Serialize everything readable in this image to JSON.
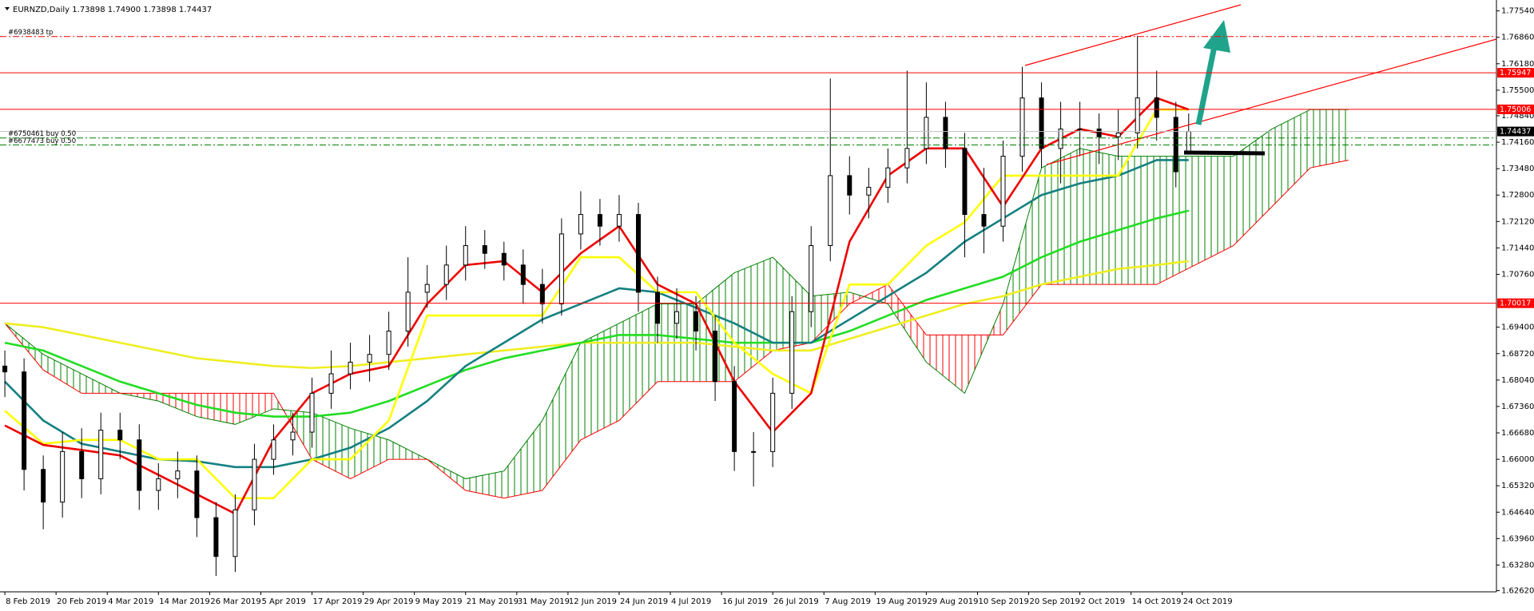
{
  "chart_data": {
    "type": "candlestick",
    "title": "EURNZD,Daily  1.73898 1.74900 1.73898 1.74437",
    "xlim": [
      -0.76,
      233.1
    ],
    "ylim": [
      1.6259,
      1.7782
    ],
    "xticks": [
      {
        "value": 0,
        "label": "8 Feb 2019"
      },
      {
        "value": 8,
        "label": "20 Feb 2019"
      },
      {
        "value": 16,
        "label": "4 Mar 2019"
      },
      {
        "value": 24,
        "label": "14 Mar 2019"
      },
      {
        "value": 32,
        "label": "26 Mar 2019"
      },
      {
        "value": 40,
        "label": "5 Apr 2019"
      },
      {
        "value": 48,
        "label": "17 Apr 2019"
      },
      {
        "value": 56,
        "label": "29 Apr 2019"
      },
      {
        "value": 64,
        "label": "9 May 2019"
      },
      {
        "value": 72,
        "label": "21 May 2019"
      },
      {
        "value": 80,
        "label": "31 May 2019"
      },
      {
        "value": 88,
        "label": "12 Jun 2019"
      },
      {
        "value": 96,
        "label": "24 Jun 2019"
      },
      {
        "value": 104,
        "label": "4 Jul 2019"
      },
      {
        "value": 112,
        "label": "16 Jul 2019"
      },
      {
        "value": 120,
        "label": "26 Jul 2019"
      },
      {
        "value": 128,
        "label": "7 Aug 2019"
      },
      {
        "value": 136,
        "label": "19 Aug 2019"
      },
      {
        "value": 144,
        "label": "29 Aug 2019"
      },
      {
        "value": 152,
        "label": "10 Sep 2019"
      },
      {
        "value": 160,
        "label": "20 Sep 2019"
      },
      {
        "value": 168,
        "label": "2 Oct 2019"
      },
      {
        "value": 176,
        "label": "14 Oct 2019"
      },
      {
        "value": 184,
        "label": "24 Oct 2019"
      }
    ],
    "yticks": [
      {
        "value": 1.7754,
        "label": "1.77540"
      },
      {
        "value": 1.7686,
        "label": "1.76860"
      },
      {
        "value": 1.7618,
        "label": "1.76180"
      },
      {
        "value": 1.755,
        "label": "1.75500"
      },
      {
        "value": 1.7484,
        "label": "1.74840"
      },
      {
        "value": 1.7416,
        "label": "1.74160"
      },
      {
        "value": 1.7348,
        "label": "1.73480"
      },
      {
        "value": 1.728,
        "label": "1.72800"
      },
      {
        "value": 1.7212,
        "label": "1.72120"
      },
      {
        "value": 1.7144,
        "label": "1.71440"
      },
      {
        "value": 1.7076,
        "label": "1.70760"
      },
      {
        "value": 1.694,
        "label": "1.69400"
      },
      {
        "value": 1.6872,
        "label": "1.68720"
      },
      {
        "value": 1.6804,
        "label": "1.68040"
      },
      {
        "value": 1.6736,
        "label": "1.67360"
      },
      {
        "value": 1.6668,
        "label": "1.66680"
      },
      {
        "value": 1.66,
        "label": "1.66000"
      },
      {
        "value": 1.6532,
        "label": "1.65320"
      },
      {
        "value": 1.6464,
        "label": "1.64640"
      },
      {
        "value": 1.6396,
        "label": "1.63960"
      },
      {
        "value": 1.6328,
        "label": "1.63280"
      },
      {
        "value": 1.6262,
        "label": "1.62620"
      }
    ],
    "up_color": "#ffffff",
    "down_color": "#000000",
    "x": [
      0,
      3,
      6,
      9,
      12,
      15,
      18,
      21,
      24,
      27,
      30,
      33,
      36,
      39,
      42,
      45,
      48,
      51,
      54,
      57,
      60,
      63,
      66,
      69,
      72,
      75,
      78,
      81,
      84,
      87,
      90,
      93,
      96,
      99,
      102,
      105,
      108,
      111,
      114,
      117,
      120,
      123,
      126,
      129,
      132,
      135,
      138,
      141,
      144,
      147,
      150,
      153,
      156,
      159,
      162,
      165,
      168,
      171,
      174,
      177,
      180,
      183,
      185
    ],
    "open": [
      1.684,
      1.6825,
      1.6574,
      1.649,
      1.662,
      1.655,
      1.6675,
      1.665,
      1.652,
      1.655,
      1.657,
      1.645,
      1.635,
      1.647,
      1.66,
      1.665,
      1.667,
      1.677,
      1.682,
      1.685,
      1.687,
      1.693,
      1.703,
      1.705,
      1.71,
      1.715,
      1.713,
      1.71,
      1.705,
      1.7,
      1.718,
      1.723,
      1.72,
      1.723,
      1.703,
      1.695,
      1.698,
      1.693,
      1.68,
      1.662,
      1.662,
      1.677,
      1.698,
      1.715,
      1.733,
      1.728,
      1.73,
      1.735,
      1.74,
      1.748,
      1.74,
      1.723,
      1.72,
      1.738,
      1.753,
      1.74,
      1.745,
      1.745,
      1.743,
      1.744,
      1.753,
      1.748,
      1.73898
    ],
    "high": [
      1.688,
      1.686,
      1.661,
      1.667,
      1.668,
      1.672,
      1.672,
      1.669,
      1.659,
      1.662,
      1.661,
      1.649,
      1.651,
      1.664,
      1.669,
      1.672,
      1.681,
      1.688,
      1.69,
      1.692,
      1.698,
      1.712,
      1.71,
      1.715,
      1.72,
      1.719,
      1.716,
      1.714,
      1.709,
      1.722,
      1.729,
      1.727,
      1.728,
      1.726,
      1.707,
      1.704,
      1.702,
      1.697,
      1.684,
      1.667,
      1.681,
      1.702,
      1.72,
      1.758,
      1.738,
      1.735,
      1.74,
      1.76,
      1.757,
      1.752,
      1.744,
      1.735,
      1.742,
      1.761,
      1.757,
      1.752,
      1.752,
      1.749,
      1.75,
      1.769,
      1.76,
      1.752,
      1.749
    ],
    "low": [
      1.676,
      1.652,
      1.642,
      1.645,
      1.65,
      1.651,
      1.66,
      1.647,
      1.647,
      1.65,
      1.64,
      1.63,
      1.631,
      1.643,
      1.656,
      1.661,
      1.663,
      1.673,
      1.678,
      1.68,
      1.683,
      1.689,
      1.699,
      1.701,
      1.706,
      1.709,
      1.706,
      1.7,
      1.695,
      1.697,
      1.714,
      1.715,
      1.716,
      1.698,
      1.69,
      1.691,
      1.688,
      1.675,
      1.657,
      1.653,
      1.658,
      1.673,
      1.694,
      1.711,
      1.723,
      1.722,
      1.726,
      1.731,
      1.736,
      1.735,
      1.712,
      1.713,
      1.716,
      1.734,
      1.735,
      1.731,
      1.738,
      1.736,
      1.737,
      1.74,
      1.742,
      1.73,
      1.73898
    ],
    "close": [
      1.6825,
      1.6574,
      1.649,
      1.662,
      1.655,
      1.6675,
      1.665,
      1.652,
      1.655,
      1.657,
      1.645,
      1.635,
      1.647,
      1.66,
      1.665,
      1.667,
      1.677,
      1.682,
      1.685,
      1.687,
      1.693,
      1.703,
      1.705,
      1.71,
      1.715,
      1.713,
      1.71,
      1.705,
      1.7,
      1.718,
      1.723,
      1.72,
      1.723,
      1.703,
      1.695,
      1.698,
      1.693,
      1.68,
      1.662,
      1.662,
      1.677,
      1.698,
      1.715,
      1.733,
      1.728,
      1.73,
      1.735,
      1.74,
      1.748,
      1.74,
      1.723,
      1.72,
      1.738,
      1.753,
      1.74,
      1.745,
      1.745,
      1.743,
      1.744,
      1.753,
      1.748,
      1.734,
      1.74437
    ],
    "cloud": {
      "x": [
        0,
        6,
        12,
        18,
        24,
        30,
        36,
        42,
        48,
        54,
        60,
        66,
        72,
        78,
        84,
        90,
        96,
        102,
        108,
        114,
        120,
        126,
        132,
        138,
        144,
        150,
        156,
        162,
        168,
        174,
        180,
        186,
        192,
        198,
        204,
        210
      ],
      "span_a": [
        1.695,
        1.687,
        1.682,
        1.677,
        1.675,
        1.671,
        1.669,
        1.673,
        1.672,
        1.668,
        1.665,
        1.66,
        1.655,
        1.657,
        1.67,
        1.69,
        1.695,
        1.7,
        1.7,
        1.708,
        1.712,
        1.702,
        1.703,
        1.7,
        1.685,
        1.677,
        1.7,
        1.735,
        1.74,
        1.738,
        1.738,
        1.738,
        1.738,
        1.745,
        1.75,
        1.75
      ],
      "span_b": [
        1.695,
        1.683,
        1.677,
        1.677,
        1.677,
        1.677,
        1.677,
        1.677,
        1.66,
        1.655,
        1.66,
        1.66,
        1.652,
        1.65,
        1.652,
        1.665,
        1.67,
        1.68,
        1.68,
        1.68,
        1.688,
        1.69,
        1.7,
        1.705,
        1.692,
        1.692,
        1.692,
        1.705,
        1.705,
        1.705,
        1.705,
        1.71,
        1.715,
        1.725,
        1.735,
        1.737
      ],
      "up_color": "#008000",
      "down_color": "#ff0000"
    },
    "line_x": [
      0,
      6,
      12,
      18,
      24,
      30,
      36,
      42,
      48,
      54,
      60,
      66,
      72,
      78,
      84,
      90,
      96,
      102,
      108,
      114,
      120,
      126,
      132,
      138,
      144,
      150,
      156,
      162,
      168,
      174,
      180,
      185
    ],
    "lines": [
      {
        "color": "#eeee22",
        "values": [
          1.695,
          1.694,
          1.692,
          1.69,
          1.688,
          1.686,
          1.685,
          1.684,
          1.6835,
          1.684,
          1.685,
          1.686,
          1.687,
          1.688,
          1.689,
          1.69,
          1.69,
          1.69,
          1.69,
          1.689,
          1.688,
          1.688,
          1.691,
          1.694,
          1.697,
          1.7,
          1.702,
          1.705,
          1.707,
          1.709,
          1.71,
          1.711
        ]
      },
      {
        "color": "#22dd22",
        "values": [
          1.69,
          1.688,
          1.684,
          1.68,
          1.677,
          1.674,
          1.672,
          1.671,
          1.671,
          1.672,
          1.675,
          1.679,
          1.683,
          1.686,
          1.688,
          1.69,
          1.692,
          1.692,
          1.691,
          1.69,
          1.69,
          1.69,
          1.693,
          1.697,
          1.701,
          1.704,
          1.707,
          1.712,
          1.716,
          1.719,
          1.722,
          1.724
        ]
      },
      {
        "color": "#148080",
        "values": [
          1.68,
          1.67,
          1.664,
          1.662,
          1.66,
          1.6595,
          1.658,
          1.658,
          1.66,
          1.663,
          1.668,
          1.675,
          1.684,
          1.69,
          1.696,
          1.7,
          1.704,
          1.703,
          1.699,
          1.695,
          1.69,
          1.69,
          1.696,
          1.702,
          1.708,
          1.716,
          1.722,
          1.728,
          1.731,
          1.733,
          1.737,
          1.737
        ]
      },
      {
        "color": "#ffff00",
        "values": [
          1.6725,
          1.664,
          1.665,
          1.665,
          1.66,
          1.66,
          1.65,
          1.65,
          1.66,
          1.66,
          1.67,
          1.697,
          1.697,
          1.697,
          1.697,
          1.712,
          1.712,
          1.703,
          1.703,
          1.69,
          1.682,
          1.677,
          1.705,
          1.705,
          1.715,
          1.721,
          1.733,
          1.733,
          1.733,
          1.733,
          1.75,
          1.75
        ]
      },
      {
        "color": "#ee0000",
        "values": [
          1.6687,
          1.6637,
          1.6624,
          1.661,
          1.656,
          1.651,
          1.646,
          1.665,
          1.677,
          1.682,
          1.684,
          1.7,
          1.71,
          1.711,
          1.703,
          1.713,
          1.72,
          1.705,
          1.7,
          1.68,
          1.667,
          1.677,
          1.716,
          1.733,
          1.74,
          1.74,
          1.725,
          1.74,
          1.745,
          1.743,
          1.753,
          1.75
        ]
      }
    ],
    "levels": [
      {
        "value": 1.7688,
        "color": "#ff0000",
        "style": "dashdot",
        "text": "#6938483 tp"
      },
      {
        "value": 1.75947,
        "color": "#ff0000",
        "style": "solid",
        "box": "#ff0000"
      },
      {
        "value": 1.75006,
        "color": "#ff0000",
        "style": "solid",
        "box": "#ff0000"
      },
      {
        "value": 1.74437,
        "color": "#c0c0c0",
        "style": "solid",
        "box": "#000000"
      },
      {
        "value": 1.7427,
        "color": "#008000",
        "style": "dashdot",
        "text": "#6750461 buy 0.50"
      },
      {
        "value": 1.7409,
        "color": "#008000",
        "style": "dashdot",
        "text": "#6677473 buy 0.50"
      },
      {
        "value": 1.70017,
        "color": "#ff0000",
        "style": "solid",
        "box": "#ff0000"
      }
    ]
  }
}
